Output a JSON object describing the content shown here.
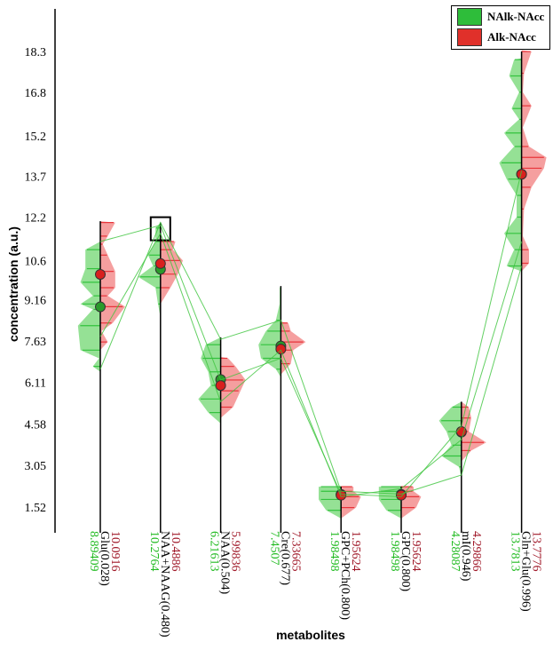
{
  "chart_data": {
    "type": "beanplot",
    "xlabel": "metabolites",
    "ylabel": "concentration (a.u.)",
    "ylim": [
      1.52,
      18.3
    ],
    "yticks": [
      "1.52",
      "3.05",
      "4.58",
      "6.11",
      "7.63",
      "9.16",
      "10.6",
      "12.2",
      "13.7",
      "15.2",
      "16.8",
      "18.3"
    ],
    "legend": {
      "position": "top-right",
      "entries": [
        {
          "name": "NAlk-NAcc",
          "color": "#2ebd3a"
        },
        {
          "name": "Alk-NAcc",
          "color": "#e0302a"
        }
      ]
    },
    "colors": {
      "green": "#33c23e",
      "red": "#e8343a",
      "green_fill": "#8fdf8f",
      "red_fill": "#f49a9a",
      "green_text": "#22bb22",
      "red_text": "#a01828"
    },
    "metabolites": [
      {
        "name": "Glu(0.028)",
        "red_mean": "10.0916",
        "green_mean": "8.89409",
        "top": 12.05,
        "green": [
          [
            6.5,
            0
          ],
          [
            6.7,
            0.3
          ],
          [
            7.0,
            0.05
          ],
          [
            7.3,
            0.8
          ],
          [
            8.2,
            0.9
          ],
          [
            8.8,
            0.3
          ],
          [
            9.0,
            0.8
          ],
          [
            9.3,
            0.3
          ],
          [
            9.8,
            0.8
          ],
          [
            10.3,
            0.6
          ],
          [
            11.0,
            0.6
          ],
          [
            11.3,
            0
          ]
        ],
        "red": [
          [
            7.3,
            0
          ],
          [
            7.6,
            0.3
          ],
          [
            8.0,
            0.05
          ],
          [
            8.3,
            0.5
          ],
          [
            8.9,
            1.0
          ],
          [
            9.3,
            0.3
          ],
          [
            9.6,
            0.6
          ],
          [
            10.2,
            0.6
          ],
          [
            10.8,
            0.3
          ],
          [
            11.2,
            0.1
          ],
          [
            11.5,
            0.3
          ],
          [
            12.0,
            0.6
          ],
          [
            12.05,
            0
          ]
        ]
      },
      {
        "name": "NAA+NAAG(0.480)",
        "red_mean": "10.4886",
        "green_mean": "10.2764",
        "top": 12.0,
        "highlight": true,
        "green": [
          [
            8.5,
            0
          ],
          [
            9.0,
            0.1
          ],
          [
            9.6,
            0.2
          ],
          [
            10.0,
            0.9
          ],
          [
            10.4,
            0.3
          ],
          [
            10.8,
            0.5
          ],
          [
            11.3,
            0.2
          ],
          [
            11.8,
            0.2
          ],
          [
            12.0,
            0
          ]
        ],
        "red": [
          [
            9.0,
            0
          ],
          [
            9.6,
            0.4
          ],
          [
            10.1,
            0.7
          ],
          [
            10.6,
            0.9
          ],
          [
            11.0,
            0.5
          ],
          [
            11.3,
            0.6
          ],
          [
            11.4,
            0
          ]
        ]
      },
      {
        "name": "NAA(0.504)",
        "red_mean": "5.99836",
        "green_mean": "6.21613",
        "top": 7.77,
        "green": [
          [
            4.6,
            0
          ],
          [
            5.0,
            0.5
          ],
          [
            5.5,
            0.9
          ],
          [
            6.0,
            0.4
          ],
          [
            6.5,
            0.5
          ],
          [
            7.0,
            0.8
          ],
          [
            7.5,
            0.6
          ],
          [
            7.77,
            0
          ]
        ],
        "red": [
          [
            4.8,
            0
          ],
          [
            5.2,
            0.5
          ],
          [
            5.8,
            0.8
          ],
          [
            6.2,
            1.0
          ],
          [
            6.7,
            0.6
          ],
          [
            7.0,
            0.3
          ],
          [
            7.05,
            0
          ]
        ]
      },
      {
        "name": "Cre(0.677)",
        "red_mean": "7.33665",
        "green_mean": "7.4507",
        "top": 9.66,
        "green": [
          [
            6.3,
            0
          ],
          [
            6.6,
            0.2
          ],
          [
            7.0,
            0.8
          ],
          [
            7.5,
            0.9
          ],
          [
            8.0,
            0.6
          ],
          [
            8.4,
            0.2
          ],
          [
            9.0,
            0.05
          ],
          [
            9.6,
            0.05
          ],
          [
            9.66,
            0
          ]
        ],
        "red": [
          [
            6.4,
            0
          ],
          [
            6.8,
            0.4
          ],
          [
            7.3,
            0.5
          ],
          [
            7.6,
            1.0
          ],
          [
            8.0,
            0.4
          ],
          [
            8.3,
            0.3
          ],
          [
            8.35,
            0
          ]
        ]
      },
      {
        "name": "GPC+PCh(0.800)",
        "red_mean": "1.95624",
        "green_mean": "1.98498",
        "top": 2.27,
        "green": [
          [
            1.1,
            0
          ],
          [
            1.4,
            0.6
          ],
          [
            1.8,
            0.9
          ],
          [
            2.1,
            0.9
          ],
          [
            2.27,
            0.9
          ],
          [
            2.28,
            0
          ]
        ],
        "red": [
          [
            1.1,
            0
          ],
          [
            1.5,
            0.6
          ],
          [
            1.9,
            0.8
          ],
          [
            2.1,
            0.5
          ],
          [
            2.27,
            0.5
          ],
          [
            2.28,
            0
          ]
        ]
      },
      {
        "name": "GPC(0.800)",
        "red_mean": "1.95624",
        "green_mean": "1.98498",
        "top": 2.27,
        "green": [
          [
            1.1,
            0
          ],
          [
            1.4,
            0.6
          ],
          [
            1.8,
            0.9
          ],
          [
            2.1,
            0.9
          ],
          [
            2.27,
            0.9
          ],
          [
            2.28,
            0
          ]
        ],
        "red": [
          [
            1.1,
            0
          ],
          [
            1.5,
            0.6
          ],
          [
            1.9,
            0.8
          ],
          [
            2.1,
            0.5
          ],
          [
            2.27,
            0.5
          ],
          [
            2.28,
            0
          ]
        ]
      },
      {
        "name": "mI(0.946)",
        "red_mean": "4.29866",
        "green_mean": "4.28087",
        "top": 5.4,
        "green": [
          [
            2.6,
            0
          ],
          [
            3.0,
            0.1
          ],
          [
            3.4,
            0.8
          ],
          [
            3.8,
            0.4
          ],
          [
            4.3,
            0.6
          ],
          [
            4.7,
            0.9
          ],
          [
            5.2,
            0.4
          ],
          [
            5.4,
            0
          ]
        ],
        "red": [
          [
            3.2,
            0
          ],
          [
            3.6,
            0.4
          ],
          [
            3.9,
            1.0
          ],
          [
            4.3,
            0.3
          ],
          [
            4.8,
            0.4
          ],
          [
            5.2,
            0.3
          ],
          [
            5.4,
            0
          ]
        ]
      },
      {
        "name": "Gln+Glu(0.996)",
        "red_mean": "13.7776",
        "green_mean": "13.7813",
        "top": 18.3,
        "green": [
          [
            10.2,
            0
          ],
          [
            10.4,
            0.6
          ],
          [
            11.0,
            0.3
          ],
          [
            11.6,
            0.7
          ],
          [
            12.2,
            0.2
          ],
          [
            13.0,
            0.2
          ],
          [
            13.6,
            0.6
          ],
          [
            14.2,
            0.9
          ],
          [
            14.8,
            0.3
          ],
          [
            15.3,
            0.7
          ],
          [
            15.8,
            0.1
          ],
          [
            16.2,
            0.4
          ],
          [
            16.8,
            0.1
          ],
          [
            17.4,
            0.5
          ],
          [
            18.0,
            0.3
          ],
          [
            18.05,
            0
          ]
        ],
        "red": [
          [
            10.2,
            0
          ],
          [
            10.5,
            0.3
          ],
          [
            11.0,
            0.3
          ],
          [
            11.5,
            0.05
          ],
          [
            12.5,
            0.1
          ],
          [
            13.3,
            0.4
          ],
          [
            14.0,
            0.9
          ],
          [
            14.4,
            1.0
          ],
          [
            14.8,
            0.3
          ],
          [
            15.5,
            0.05
          ],
          [
            16.3,
            0.4
          ],
          [
            16.8,
            0.05
          ],
          [
            17.5,
            0.1
          ],
          [
            18.3,
            0.4
          ],
          [
            18.35,
            0
          ]
        ]
      }
    ],
    "trajectories": [
      [
        6.6,
        12.0,
        7.7,
        8.4,
        2.1,
        2.0,
        2.7,
        10.4
      ],
      [
        11.3,
        11.9,
        6.2,
        7.0,
        2.0,
        1.9,
        4.5,
        13.9
      ],
      [
        7.8,
        11.6,
        5.4,
        7.3,
        1.9,
        2.2,
        4.0,
        11.3
      ]
    ]
  }
}
